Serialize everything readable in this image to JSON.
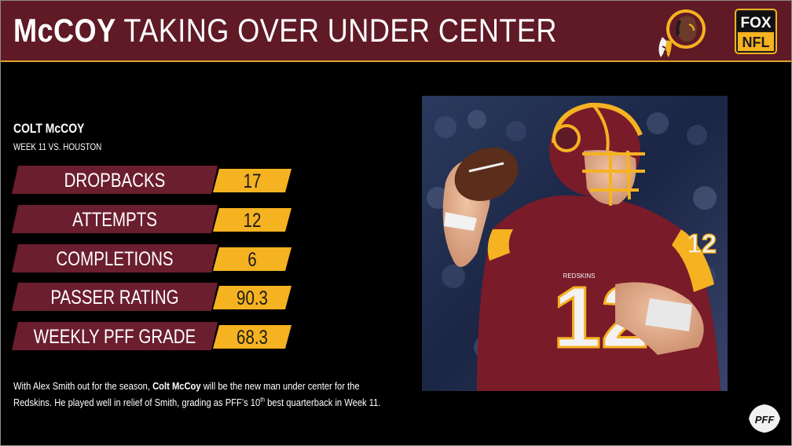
{
  "header": {
    "title_strong": "McCOY",
    "title_rest": "TAKING OVER UNDER CENTER"
  },
  "logos": {
    "team": "redskins-logo",
    "network": "fox-nfl-logo",
    "network_line1": "FOX",
    "network_line2": "NFL",
    "source": "pff-logo"
  },
  "player": {
    "name": "COLT McCOY",
    "subtitle": "WEEK 11 VS. HOUSTON"
  },
  "stats": [
    {
      "label": "DROPBACKS",
      "value": "17"
    },
    {
      "label": "ATTEMPTS",
      "value": "12"
    },
    {
      "label": "COMPLETIONS",
      "value": "6"
    },
    {
      "label": "PASSER RATING",
      "value": "90.3"
    },
    {
      "label": "WEEKLY PFF GRADE",
      "value": "68.3"
    }
  ],
  "blurb": {
    "part1": "With Alex Smith out for the season, ",
    "bold": "Colt McCoy",
    "part2": " will be the new man under center for the Redskins. He played well in relief of Smith, grading as PFF’s 10",
    "sup": "th",
    "part3": " best quarterback in Week 11."
  },
  "photo": {
    "jersey_number": "12",
    "jersey_text": "REDSKINS"
  },
  "colors": {
    "banner": "#5f1a26",
    "accent_gold": "#f5b221",
    "label_maroon": "#6b1e2d",
    "background": "#000000"
  }
}
